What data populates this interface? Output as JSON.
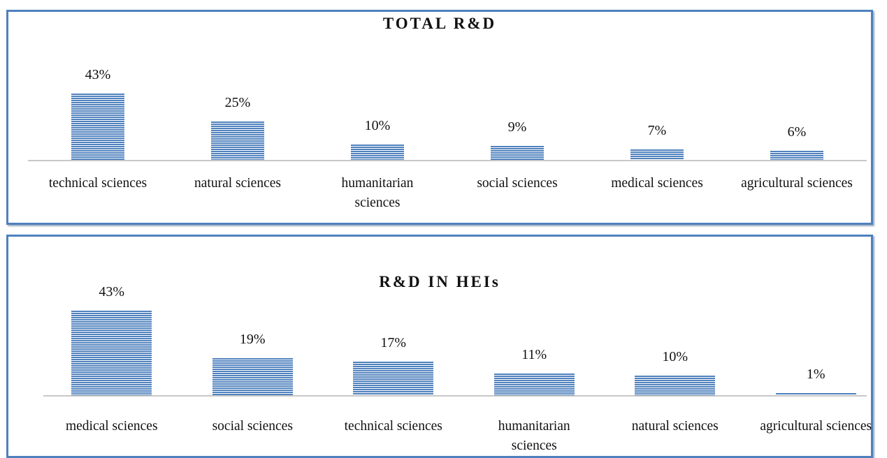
{
  "chart_data": [
    {
      "type": "bar",
      "title": "TOTAL R&D",
      "categories": [
        "technical sciences",
        "natural sciences",
        "humanitarian sciences",
        "social sciences",
        "medical sciences",
        "agricultural sciences"
      ],
      "values": [
        43,
        25,
        10,
        9,
        7,
        6
      ],
      "value_labels": [
        "43%",
        "25%",
        "10%",
        "9%",
        "7%",
        "6%"
      ],
      "color": "#4f81bd"
    },
    {
      "type": "bar",
      "title": "R&D IN HEIs",
      "categories": [
        "medical sciences",
        "social sciences",
        "technical sciences",
        "humanitarian sciences",
        "natural sciences",
        "agricultural sciences"
      ],
      "values": [
        43,
        19,
        17,
        11,
        10,
        1
      ],
      "value_labels": [
        "43%",
        "19%",
        "17%",
        "11%",
        "10%",
        "1%"
      ],
      "color": "#4f81bd"
    }
  ]
}
